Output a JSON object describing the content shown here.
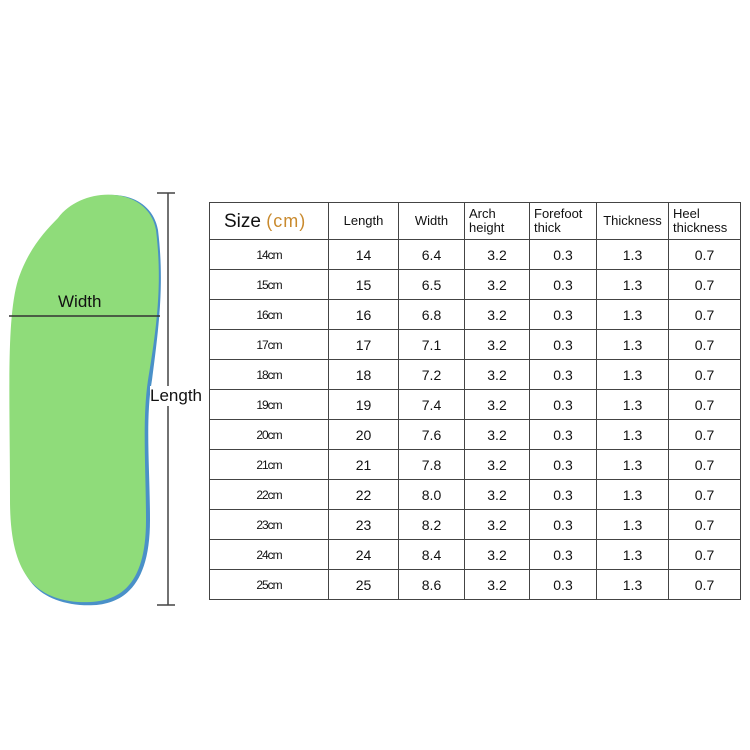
{
  "diagram": {
    "width_label": "Width",
    "length_label": "Length",
    "insole_color": "#8fdc7a"
  },
  "table": {
    "header": {
      "size": "Size",
      "unit": "(cm)",
      "length": "Length",
      "width": "Width",
      "arch": "Arch height",
      "forefoot": "Forefoot thick",
      "thickness": "Thickness",
      "heel": "Heel thickness"
    },
    "rows": [
      [
        "14cm",
        "14",
        "6.4",
        "3.2",
        "0.3",
        "1.3",
        "0.7"
      ],
      [
        "15cm",
        "15",
        "6.5",
        "3.2",
        "0.3",
        "1.3",
        "0.7"
      ],
      [
        "16cm",
        "16",
        "6.8",
        "3.2",
        "0.3",
        "1.3",
        "0.7"
      ],
      [
        "17cm",
        "17",
        "7.1",
        "3.2",
        "0.3",
        "1.3",
        "0.7"
      ],
      [
        "18cm",
        "18",
        "7.2",
        "3.2",
        "0.3",
        "1.3",
        "0.7"
      ],
      [
        "19cm",
        "19",
        "7.4",
        "3.2",
        "0.3",
        "1.3",
        "0.7"
      ],
      [
        "20cm",
        "20",
        "7.6",
        "3.2",
        "0.3",
        "1.3",
        "0.7"
      ],
      [
        "21cm",
        "21",
        "7.8",
        "3.2",
        "0.3",
        "1.3",
        "0.7"
      ],
      [
        "22cm",
        "22",
        "8.0",
        "3.2",
        "0.3",
        "1.3",
        "0.7"
      ],
      [
        "23cm",
        "23",
        "8.2",
        "3.2",
        "0.3",
        "1.3",
        "0.7"
      ],
      [
        "24cm",
        "24",
        "8.4",
        "3.2",
        "0.3",
        "1.3",
        "0.7"
      ],
      [
        "25cm",
        "25",
        "8.6",
        "3.2",
        "0.3",
        "1.3",
        "0.7"
      ]
    ]
  }
}
